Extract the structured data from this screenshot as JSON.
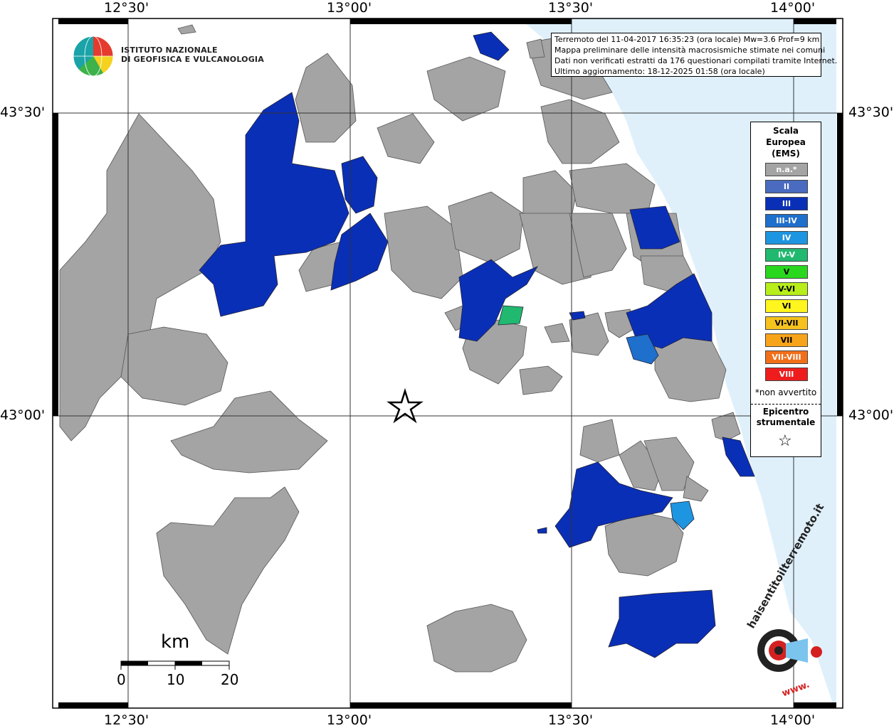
{
  "map": {
    "longitude_ticks": [
      "12°30'",
      "13°00'",
      "13°30'",
      "14°00'"
    ],
    "latitude_ticks": [
      "43°30'",
      "43°00'"
    ],
    "colors": {
      "sea": "#dff0fb",
      "land": "#ffffff",
      "not_available": "#a4a4a4",
      "II": "#4a6bbf",
      "III": "#0a2fb7",
      "III-IV": "#1f6fcd",
      "IV": "#1e95e0",
      "IV-V": "#21b86f",
      "V": "#29d81e",
      "V-VI": "#b8ee1a",
      "VI": "#fff51f",
      "VI-VII": "#f6c21e",
      "VII": "#f8a41a",
      "VII-VIII": "#f26f1a",
      "VIII": "#ee1c1c"
    }
  },
  "logo": {
    "line1": "ISTITUTO NAZIONALE",
    "line2": "DI GEOFISICA E VULCANOLOGIA"
  },
  "info": {
    "line1": "Terremoto del 11-04-2017 16:35:23 (ora locale) Mw=3.6 Prof=9 km",
    "line2": "Mappa preliminare delle intensità macrosismiche stimate nei comuni",
    "line3": "Dati non verificati estratti da 176 questionari compilati tramite Internet.",
    "line4": "Ultimo aggiornamento: 18-12-2025 01:58 (ora locale)"
  },
  "legend": {
    "title1": "Scala",
    "title2": "Europea",
    "title3": "(EMS)",
    "items": [
      "n.a.*",
      "II",
      "III",
      "III-IV",
      "IV",
      "IV-V",
      "V",
      "V-VI",
      "VI",
      "VI-VII",
      "VII",
      "VII-VIII",
      "VIII"
    ],
    "note": "*non avvertito",
    "epicenter1": "Epicentro",
    "epicenter2": "strumentale",
    "epicenter_symbol": "☆"
  },
  "scale_bar": {
    "unit": "km",
    "labels": [
      "0",
      "10",
      "20"
    ]
  },
  "brand": {
    "text": "haisentitoilterremoto.it",
    "prefix": "www."
  }
}
